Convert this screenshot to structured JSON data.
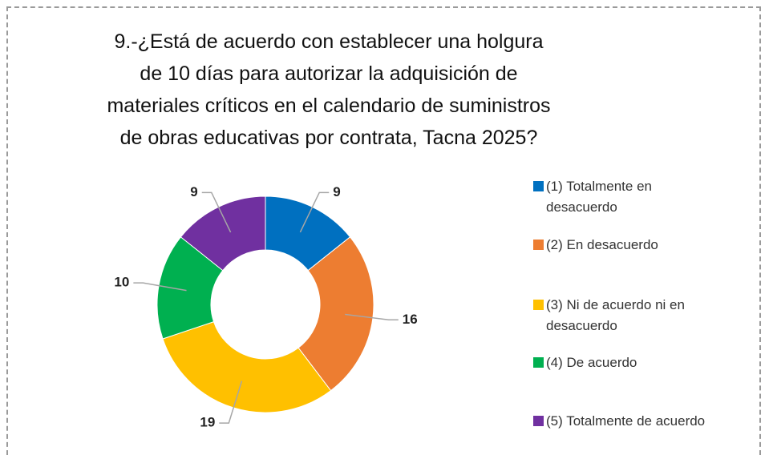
{
  "chart_data": {
    "type": "donut",
    "title": "9.-¿Está de acuerdo con establecer una holgura de 10 días para autorizar la adquisición de materiales críticos en el calendario de suministros de obras educativas por contrata, Tacna 2025?",
    "categories": [
      "(1) Totalmente en desacuerdo",
      "(2) En desacuerdo",
      "(3) Ni de acuerdo ni en desacuerdo",
      "(4) De acuerdo",
      "(5) Totalmente de acuerdo"
    ],
    "values": [
      9,
      16,
      19,
      10,
      9
    ],
    "colors": [
      "#0070c0",
      "#ed7d31",
      "#ffc000",
      "#00b050",
      "#7030a0"
    ],
    "legend": "right"
  }
}
